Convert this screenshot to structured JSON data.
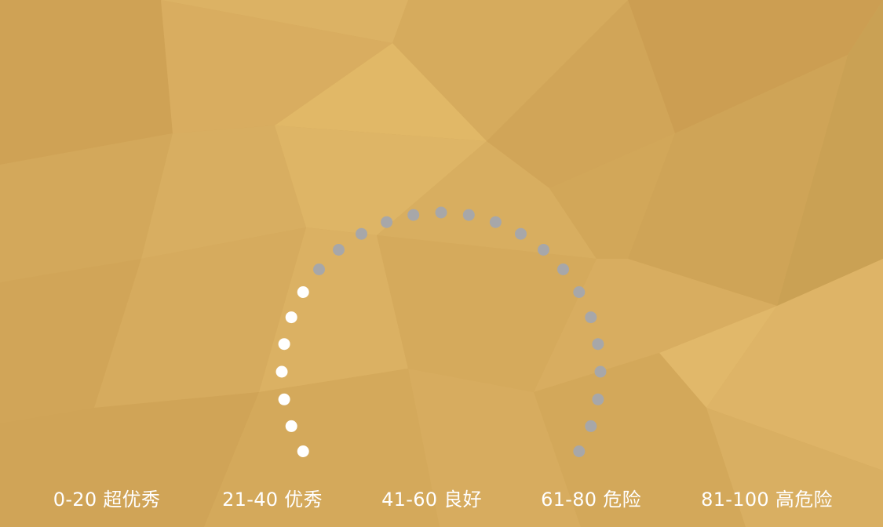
{
  "gauge": {
    "dot_count": 25,
    "filled_dots": 7,
    "filled_color": "#ffffff",
    "empty_color": "#a7a7a9"
  },
  "legend": [
    {
      "label": "0-20 超优秀"
    },
    {
      "label": "21-40 优秀"
    },
    {
      "label": "41-60 良好"
    },
    {
      "label": "61-80 危险"
    },
    {
      "label": "81-100 高危险"
    }
  ],
  "background": {
    "base_color": "#d4a95a"
  }
}
